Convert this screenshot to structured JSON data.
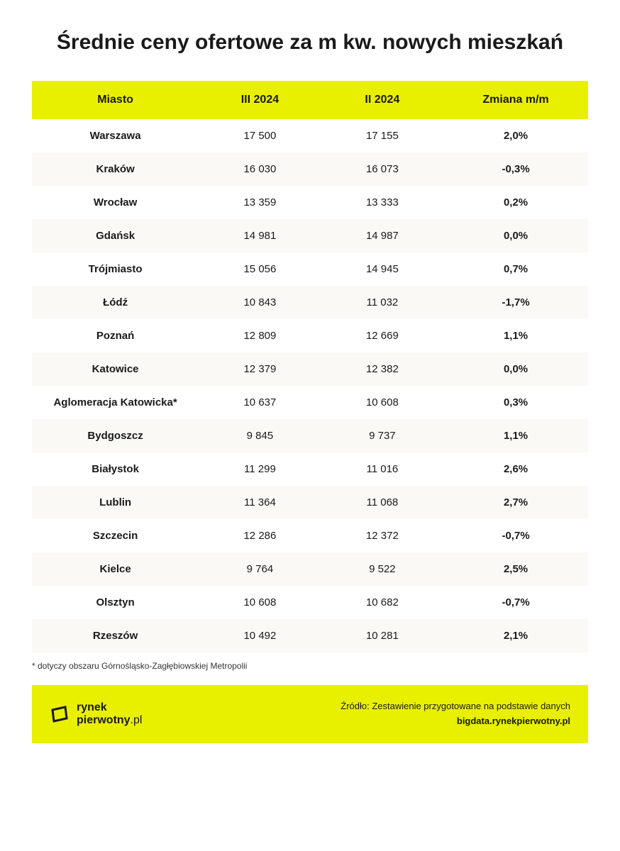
{
  "title": "Średnie ceny ofertowe za m kw. nowych mieszkań",
  "table": {
    "type": "table",
    "header_bg_color": "#e8f000",
    "row_alt_bg_color": "#faf9f5",
    "text_color": "#1a1a1a",
    "columns": [
      "Miasto",
      "III 2024",
      "II 2024",
      "Zmiana m/m"
    ],
    "rows": [
      {
        "city": "Warszawa",
        "v1": "17 500",
        "v2": "17 155",
        "change": "2,0%"
      },
      {
        "city": "Kraków",
        "v1": "16 030",
        "v2": "16 073",
        "change": "-0,3%"
      },
      {
        "city": "Wrocław",
        "v1": "13 359",
        "v2": "13 333",
        "change": "0,2%"
      },
      {
        "city": "Gdańsk",
        "v1": "14 981",
        "v2": "14 987",
        "change": "0,0%"
      },
      {
        "city": "Trójmiasto",
        "v1": "15 056",
        "v2": "14 945",
        "change": "0,7%"
      },
      {
        "city": "Łódź",
        "v1": "10 843",
        "v2": "11 032",
        "change": "-1,7%"
      },
      {
        "city": "Poznań",
        "v1": "12 809",
        "v2": "12 669",
        "change": "1,1%"
      },
      {
        "city": "Katowice",
        "v1": "12 379",
        "v2": "12 382",
        "change": "0,0%"
      },
      {
        "city": "Aglomeracja Katowicka*",
        "v1": "10 637",
        "v2": "10 608",
        "change": "0,3%"
      },
      {
        "city": "Bydgoszcz",
        "v1": "9 845",
        "v2": "9 737",
        "change": "1,1%"
      },
      {
        "city": "Białystok",
        "v1": "11 299",
        "v2": "11 016",
        "change": "2,6%"
      },
      {
        "city": "Lublin",
        "v1": "11 364",
        "v2": "11 068",
        "change": "2,7%"
      },
      {
        "city": "Szczecin",
        "v1": "12 286",
        "v2": "12 372",
        "change": "-0,7%"
      },
      {
        "city": "Kielce",
        "v1": "9 764",
        "v2": "9 522",
        "change": "2,5%"
      },
      {
        "city": "Olsztyn",
        "v1": "10 608",
        "v2": "10 682",
        "change": "-0,7%"
      },
      {
        "city": "Rzeszów",
        "v1": "10 492",
        "v2": "10 281",
        "change": "2,1%"
      }
    ]
  },
  "footnote": "* dotyczy obszaru Górnośląsko-Zagłębiowskiej Metropolii",
  "source": {
    "bg_color": "#e8f000",
    "logo_brand_bold": "rynek",
    "logo_brand_light": "pierwotny",
    "logo_tld": ".pl",
    "text_prefix": "Źródło: Zestawienie przygotowane na podstawie danych ",
    "text_bold": "bigdata.rynekpierwotny.pl"
  },
  "typography": {
    "title_fontsize": 30,
    "title_weight": 800,
    "header_fontsize": 16,
    "cell_fontsize": 15,
    "footnote_fontsize": 12,
    "source_fontsize": 13
  }
}
